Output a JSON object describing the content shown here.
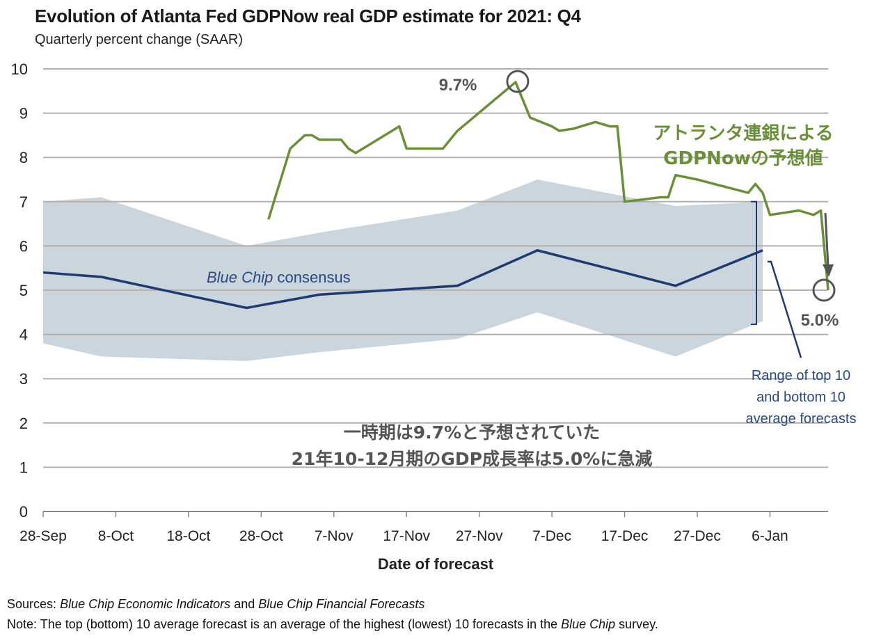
{
  "title": "Evolution of Atlanta Fed GDPNow real GDP estimate for 2021: Q4",
  "subtitle": "Quarterly percent change (SAAR)",
  "footer": {
    "sources_label": "Sources:",
    "sources_part1": "Blue Chip Economic Indicators",
    "sources_and": " and ",
    "sources_part2": "Blue Chip Financial Forecasts",
    "note_label": "Note:",
    "note_text1": " The top (bottom) 10 average forecast is an average of the highest (lowest) 10 forecasts in the ",
    "note_italic": "Blue Chip",
    "note_text2": " survey."
  },
  "chart_data": {
    "type": "line",
    "xlabel": "Date of forecast",
    "ylabel": "",
    "ylim": [
      0,
      10
    ],
    "yticks": [
      0,
      1,
      2,
      3,
      4,
      5,
      6,
      7,
      8,
      9,
      10
    ],
    "xticks": [
      "28-Sep",
      "8-Oct",
      "18-Oct",
      "28-Oct",
      "7-Nov",
      "17-Nov",
      "27-Nov",
      "7-Dec",
      "17-Dec",
      "27-Dec",
      "6-Jan"
    ],
    "xlim": [
      "2021-09-28",
      "2022-01-14"
    ],
    "grid": true,
    "colors": {
      "gdpnow": "#6b8e3a",
      "consensus": "#1f3a6e",
      "band": "#c5d0da",
      "grid": "#b0b0b0",
      "annotation": "#555555",
      "range_text": "#2a4a7e"
    },
    "series": [
      {
        "name": "アトランタ連銀による GDPNowの予想値",
        "x": [
          "2021-10-29",
          "2021-11-01",
          "2021-11-03",
          "2021-11-04",
          "2021-11-05",
          "2021-11-08",
          "2021-11-09",
          "2021-11-10",
          "2021-11-16",
          "2021-11-17",
          "2021-11-22",
          "2021-11-24",
          "2021-12-02",
          "2021-12-04",
          "2021-12-07",
          "2021-12-08",
          "2021-12-10",
          "2021-12-13",
          "2021-12-15",
          "2021-12-16",
          "2021-12-17",
          "2021-12-22",
          "2021-12-23",
          "2021-12-24",
          "2021-12-27",
          "2022-01-03",
          "2022-01-04",
          "2022-01-05",
          "2022-01-06",
          "2022-01-10",
          "2022-01-12",
          "2022-01-13",
          "2022-01-14"
        ],
        "values": [
          6.6,
          8.2,
          8.5,
          8.5,
          8.4,
          8.4,
          8.2,
          8.1,
          8.7,
          8.2,
          8.2,
          8.6,
          9.7,
          8.9,
          8.7,
          8.6,
          8.65,
          8.8,
          8.7,
          8.7,
          7.0,
          7.1,
          7.1,
          7.6,
          7.5,
          7.2,
          7.4,
          7.2,
          6.7,
          6.8,
          6.7,
          6.8,
          5.0
        ]
      },
      {
        "name": "Blue Chip consensus",
        "x": [
          "2021-09-28",
          "2021-10-06",
          "2021-10-26",
          "2021-11-05",
          "2021-11-24",
          "2021-12-05",
          "2021-12-24",
          "2022-01-05"
        ],
        "values": [
          5.4,
          5.3,
          4.6,
          4.9,
          5.1,
          5.9,
          5.1,
          5.9
        ]
      },
      {
        "name": "Range of top 10 and bottom 10 average forecasts",
        "type": "area-band",
        "x": [
          "2021-09-28",
          "2021-10-06",
          "2021-10-26",
          "2021-11-05",
          "2021-11-24",
          "2021-12-05",
          "2021-12-24",
          "2022-01-05"
        ],
        "upper": [
          7.0,
          7.1,
          6.0,
          6.3,
          6.8,
          7.5,
          6.9,
          7.0
        ],
        "lower": [
          3.8,
          3.5,
          3.4,
          3.6,
          3.9,
          4.5,
          3.5,
          4.3
        ]
      }
    ],
    "annotations": {
      "peak_label": "9.7%",
      "last_label": "5.0%",
      "gdpnow_label_line1": "アトランタ連銀による",
      "gdpnow_label_line2": "GDPNowの予想値",
      "consensus_label_italic": "Blue Chip",
      "consensus_label_rest": " consensus",
      "range_label_line1": "Range of top 10",
      "range_label_line2": "and bottom 10",
      "range_label_line3": "average forecasts",
      "note_line1": "一時期は9.7%と予想されていた",
      "note_line2": "21年10-12月期のGDP成長率は5.0%に急減"
    }
  }
}
